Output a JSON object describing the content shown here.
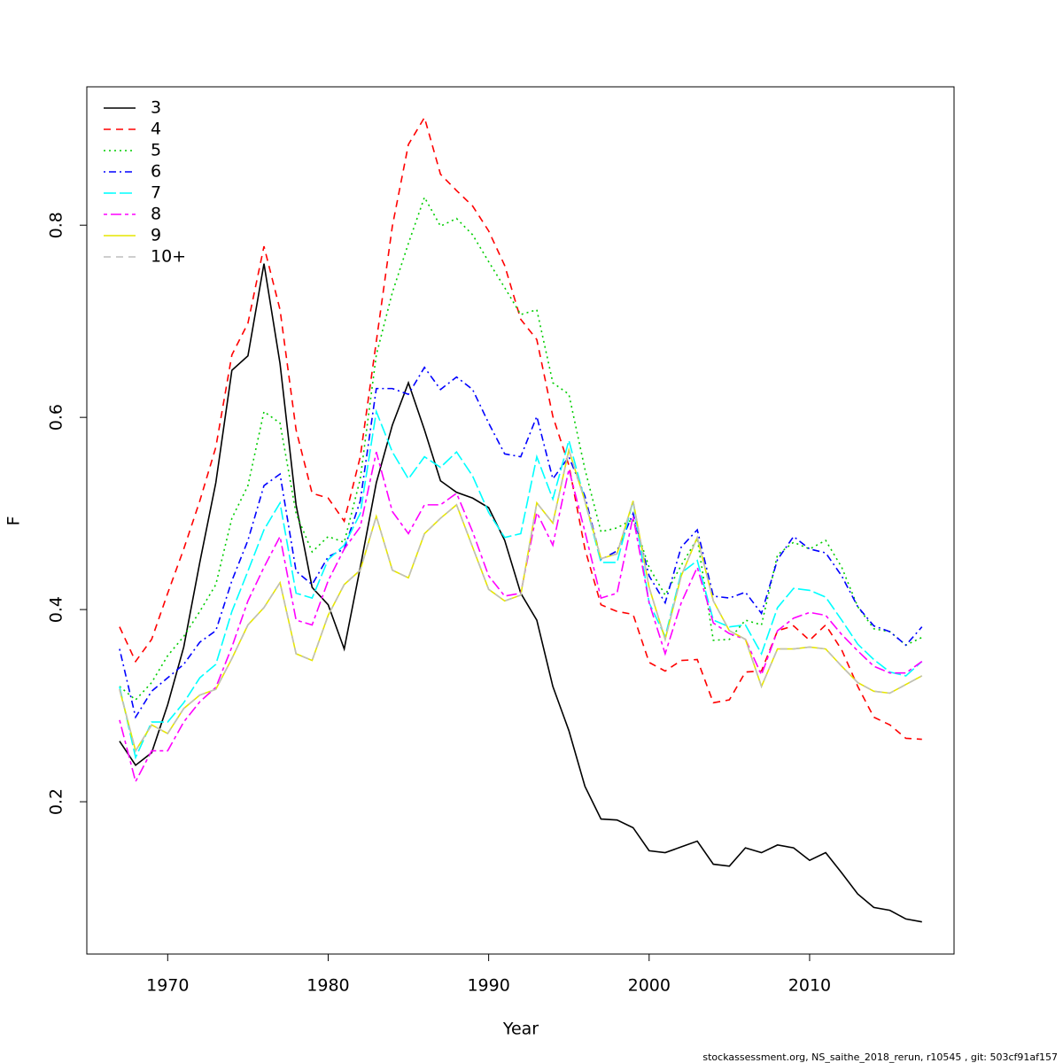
{
  "chart_data": {
    "type": "line",
    "xlabel": "Year",
    "ylabel": "F",
    "footer": "stockassessment.org, NS_saithe_2018_rerun, r10545 , git: 503cf91af157",
    "legend": "top-left",
    "x": [
      1967,
      1968,
      1969,
      1970,
      1971,
      1972,
      1973,
      1974,
      1975,
      1976,
      1977,
      1978,
      1979,
      1980,
      1981,
      1982,
      1983,
      1984,
      1985,
      1986,
      1987,
      1988,
      1989,
      1990,
      1991,
      1992,
      1993,
      1994,
      1995,
      1996,
      1997,
      1998,
      1999,
      2000,
      2001,
      2002,
      2003,
      2004,
      2005,
      2006,
      2007,
      2008,
      2009,
      2010,
      2011,
      2012,
      2013,
      2014,
      2015,
      2016,
      2017
    ],
    "xlim": [
      1964.96,
      2019.0
    ],
    "xticks": [
      1970,
      1980,
      1990,
      2000,
      2010
    ],
    "ylim": [
      0.0415,
      0.944
    ],
    "yticks": [
      0.2,
      0.4,
      0.6,
      0.8
    ],
    "series": [
      {
        "name": "3",
        "color": "#000000",
        "linestyle": "solid",
        "values": [
          0.263,
          0.238,
          0.251,
          0.301,
          0.361,
          0.449,
          0.532,
          0.649,
          0.664,
          0.76,
          0.656,
          0.509,
          0.423,
          0.405,
          0.359,
          0.444,
          0.532,
          0.592,
          0.636,
          0.587,
          0.534,
          0.522,
          0.516,
          0.506,
          0.472,
          0.417,
          0.389,
          0.32,
          0.274,
          0.216,
          0.182,
          0.181,
          0.173,
          0.149,
          0.147,
          0.153,
          0.159,
          0.135,
          0.133,
          0.152,
          0.147,
          0.155,
          0.152,
          0.139,
          0.147,
          0.126,
          0.104,
          0.09,
          0.087,
          0.078,
          0.075
        ]
      },
      {
        "name": "4",
        "color": "#ff0000",
        "linestyle": "dashed",
        "values": [
          0.382,
          0.346,
          0.369,
          0.417,
          0.463,
          0.513,
          0.569,
          0.665,
          0.698,
          0.778,
          0.712,
          0.587,
          0.521,
          0.516,
          0.492,
          0.559,
          0.679,
          0.799,
          0.884,
          0.912,
          0.853,
          0.836,
          0.82,
          0.794,
          0.758,
          0.702,
          0.681,
          0.601,
          0.55,
          0.463,
          0.405,
          0.398,
          0.395,
          0.345,
          0.336,
          0.347,
          0.348,
          0.303,
          0.306,
          0.335,
          0.336,
          0.378,
          0.383,
          0.368,
          0.384,
          0.358,
          0.32,
          0.288,
          0.28,
          0.266,
          0.265
        ]
      },
      {
        "name": "5",
        "color": "#00cd00",
        "linestyle": "dotted",
        "values": [
          0.32,
          0.306,
          0.324,
          0.352,
          0.372,
          0.398,
          0.426,
          0.495,
          0.529,
          0.606,
          0.594,
          0.5,
          0.46,
          0.476,
          0.47,
          0.536,
          0.665,
          0.73,
          0.781,
          0.829,
          0.799,
          0.807,
          0.79,
          0.762,
          0.735,
          0.707,
          0.712,
          0.636,
          0.624,
          0.546,
          0.481,
          0.485,
          0.494,
          0.444,
          0.415,
          0.446,
          0.474,
          0.368,
          0.369,
          0.389,
          0.384,
          0.457,
          0.47,
          0.463,
          0.472,
          0.444,
          0.403,
          0.38,
          0.377,
          0.363,
          0.371
        ]
      },
      {
        "name": "6",
        "color": "#0000ff",
        "linestyle": "dotdash",
        "values": [
          0.359,
          0.288,
          0.315,
          0.329,
          0.343,
          0.366,
          0.378,
          0.43,
          0.472,
          0.529,
          0.541,
          0.44,
          0.426,
          0.455,
          0.463,
          0.513,
          0.63,
          0.63,
          0.624,
          0.652,
          0.629,
          0.642,
          0.629,
          0.594,
          0.562,
          0.559,
          0.601,
          0.536,
          0.559,
          0.518,
          0.452,
          0.461,
          0.5,
          0.435,
          0.407,
          0.465,
          0.483,
          0.414,
          0.412,
          0.418,
          0.396,
          0.452,
          0.476,
          0.463,
          0.459,
          0.435,
          0.403,
          0.383,
          0.377,
          0.363,
          0.382
        ]
      },
      {
        "name": "7",
        "color": "#00ffff",
        "linestyle": "longdash",
        "values": [
          0.32,
          0.246,
          0.283,
          0.283,
          0.303,
          0.329,
          0.343,
          0.398,
          0.44,
          0.483,
          0.511,
          0.417,
          0.412,
          0.452,
          0.467,
          0.5,
          0.606,
          0.564,
          0.536,
          0.559,
          0.548,
          0.564,
          0.539,
          0.501,
          0.475,
          0.479,
          0.559,
          0.515,
          0.576,
          0.513,
          0.449,
          0.449,
          0.513,
          0.407,
          0.372,
          0.438,
          0.451,
          0.389,
          0.382,
          0.384,
          0.354,
          0.402,
          0.422,
          0.42,
          0.413,
          0.389,
          0.364,
          0.348,
          0.335,
          0.331,
          0.346
        ]
      },
      {
        "name": "8",
        "color": "#ff00ff",
        "linestyle": "twodash",
        "values": [
          0.285,
          0.221,
          0.253,
          0.253,
          0.283,
          0.304,
          0.319,
          0.361,
          0.409,
          0.444,
          0.476,
          0.389,
          0.384,
          0.43,
          0.463,
          0.486,
          0.564,
          0.502,
          0.479,
          0.509,
          0.509,
          0.521,
          0.481,
          0.435,
          0.414,
          0.417,
          0.501,
          0.467,
          0.546,
          0.481,
          0.412,
          0.417,
          0.497,
          0.407,
          0.354,
          0.407,
          0.444,
          0.386,
          0.375,
          0.369,
          0.332,
          0.378,
          0.391,
          0.397,
          0.394,
          0.374,
          0.357,
          0.341,
          0.334,
          0.334,
          0.346
        ]
      },
      {
        "name": "9",
        "color": "#e6e600",
        "linestyle": "solid",
        "values": [
          0.317,
          0.253,
          0.28,
          0.271,
          0.297,
          0.311,
          0.317,
          0.349,
          0.384,
          0.402,
          0.428,
          0.354,
          0.347,
          0.394,
          0.426,
          0.441,
          0.497,
          0.441,
          0.433,
          0.479,
          0.495,
          0.509,
          0.465,
          0.421,
          0.409,
          0.415,
          0.511,
          0.49,
          0.566,
          0.513,
          0.453,
          0.458,
          0.513,
          0.423,
          0.369,
          0.435,
          0.475,
          0.409,
          0.378,
          0.369,
          0.32,
          0.359,
          0.359,
          0.361,
          0.359,
          0.341,
          0.324,
          0.315,
          0.313,
          0.322,
          0.331
        ]
      },
      {
        "name": "10+",
        "color": "#bebebe",
        "linestyle": "dashed",
        "values": [
          0.317,
          0.253,
          0.28,
          0.271,
          0.297,
          0.311,
          0.317,
          0.349,
          0.384,
          0.402,
          0.428,
          0.354,
          0.347,
          0.394,
          0.426,
          0.441,
          0.497,
          0.441,
          0.433,
          0.479,
          0.495,
          0.509,
          0.465,
          0.421,
          0.409,
          0.415,
          0.511,
          0.49,
          0.566,
          0.513,
          0.453,
          0.458,
          0.513,
          0.423,
          0.369,
          0.435,
          0.475,
          0.409,
          0.378,
          0.369,
          0.32,
          0.359,
          0.359,
          0.361,
          0.359,
          0.341,
          0.324,
          0.315,
          0.313,
          0.322,
          0.331
        ]
      }
    ]
  }
}
